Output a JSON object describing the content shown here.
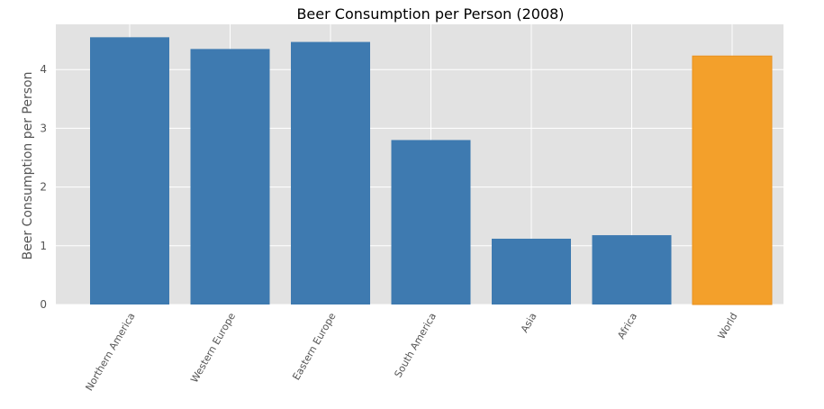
{
  "chart_data": {
    "type": "bar",
    "title": "Beer Consumption per Person (2008)",
    "xlabel": "",
    "ylabel": "Beer Consumption per Person",
    "categories": [
      "Northern America",
      "Western Europe",
      "Eastern Europe",
      "South America",
      "Asia",
      "Africa",
      "World"
    ],
    "values": [
      4.55,
      4.35,
      4.47,
      2.8,
      1.12,
      1.18,
      4.23
    ],
    "yticks": [
      0,
      1,
      2,
      3,
      4
    ],
    "ylim": [
      0,
      4.77
    ],
    "grid": true,
    "legend": "none",
    "colors": {
      "default_bar": "#3e7ab0",
      "highlight_bar": "#f3a02b",
      "highlight_edge": "#e8911f",
      "plot_background": "#e2e2e2",
      "grid": "#ffffff"
    },
    "highlight_category": "World"
  }
}
